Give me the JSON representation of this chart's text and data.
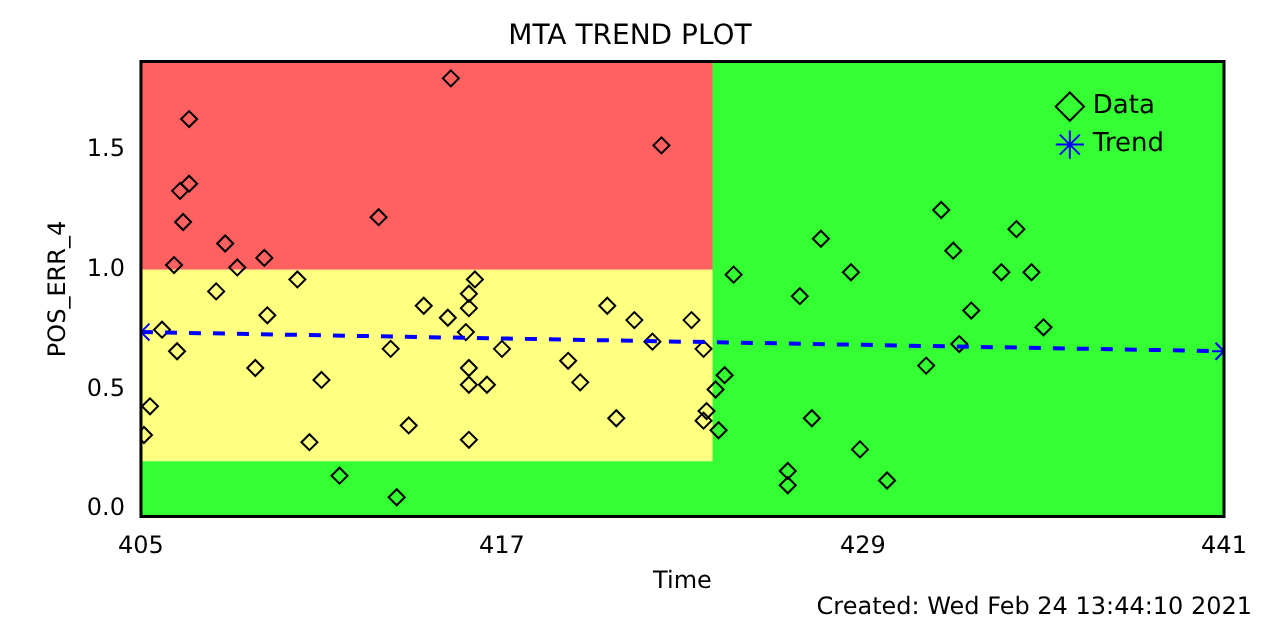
{
  "chart_data": {
    "type": "scatter",
    "title": "MTA TREND PLOT",
    "xlabel": "Time",
    "ylabel": "POS_ERR_4",
    "annotations": [
      "Created: Wed Feb 24 13:44:10 2021"
    ],
    "xlim": [
      405,
      441
    ],
    "xticks": [
      405,
      417,
      429,
      441
    ],
    "ylim": [
      -0.03,
      1.87
    ],
    "yticks": [
      {
        "value": 0,
        "label": "0.0"
      },
      {
        "value": 0.5,
        "label": "0.5"
      },
      {
        "value": 1,
        "label": "1.0"
      },
      {
        "value": 1.5,
        "label": "1.5"
      }
    ],
    "bands": [
      {
        "axis": "y",
        "from": 1.0,
        "to": 1.87,
        "color": "#ff6060"
      },
      {
        "axis": "y",
        "from": 0.2,
        "to": 1.0,
        "color": "#ffff80"
      },
      {
        "axis": "y",
        "from": -0.03,
        "to": 0.2,
        "color": "#33ff33"
      },
      {
        "axis": "x",
        "from": 424,
        "to": 441,
        "color": "#33ff33"
      }
    ],
    "legend": "top right",
    "series": [
      {
        "name": "Data",
        "marker": "diamond",
        "color": "#000000",
        "x": [
          415.3,
          406.6,
          406.3,
          406.6,
          406.4,
          412.9,
          407.8,
          406.1,
          408.2,
          409.1,
          410.2,
          407.5,
          416.1,
          415.9,
          415.9,
          415.2,
          414.4,
          409.2,
          405.7,
          406.2,
          415.8,
          413.3,
          417.0,
          408.8,
          411.0,
          415.9,
          415.9,
          416.5,
          405.3,
          405.1,
          410.6,
          413.9,
          415.9,
          411.6,
          413.5,
          422.3,
          420.5,
          421.4,
          423.3,
          422.0,
          423.7,
          419.2,
          419.6,
          420.8,
          423.8,
          423.7,
          424.2,
          424.4,
          424.1,
          424.7,
          427.6,
          428.6,
          426.9,
          427.3,
          428.9,
          426.5,
          426.5,
          431.6,
          434.1,
          432.0,
          433.6,
          434.6,
          432.6,
          435.0,
          432.2,
          431.1,
          429.8
        ],
        "values": [
          1.8,
          1.63,
          1.33,
          1.36,
          1.2,
          1.22,
          1.11,
          1.02,
          1.01,
          1.05,
          0.96,
          0.91,
          0.96,
          0.9,
          0.84,
          0.8,
          0.85,
          0.81,
          0.75,
          0.66,
          0.74,
          0.67,
          0.67,
          0.59,
          0.54,
          0.59,
          0.52,
          0.52,
          0.43,
          0.31,
          0.28,
          0.35,
          0.29,
          0.14,
          0.05,
          1.52,
          0.85,
          0.79,
          0.79,
          0.7,
          0.67,
          0.62,
          0.53,
          0.38,
          0.41,
          0.37,
          0.33,
          0.56,
          0.5,
          0.98,
          1.13,
          0.99,
          0.89,
          0.38,
          0.25,
          0.16,
          0.1,
          1.25,
          1.17,
          1.08,
          0.99,
          0.99,
          0.83,
          0.76,
          0.69,
          0.6,
          0.12
        ]
      },
      {
        "name": "Trend",
        "type": "line",
        "marker": "cross",
        "line_style": "dashed",
        "color": "#0000ff",
        "x": [
          405,
          441
        ],
        "values": [
          0.74,
          0.66
        ]
      }
    ]
  }
}
